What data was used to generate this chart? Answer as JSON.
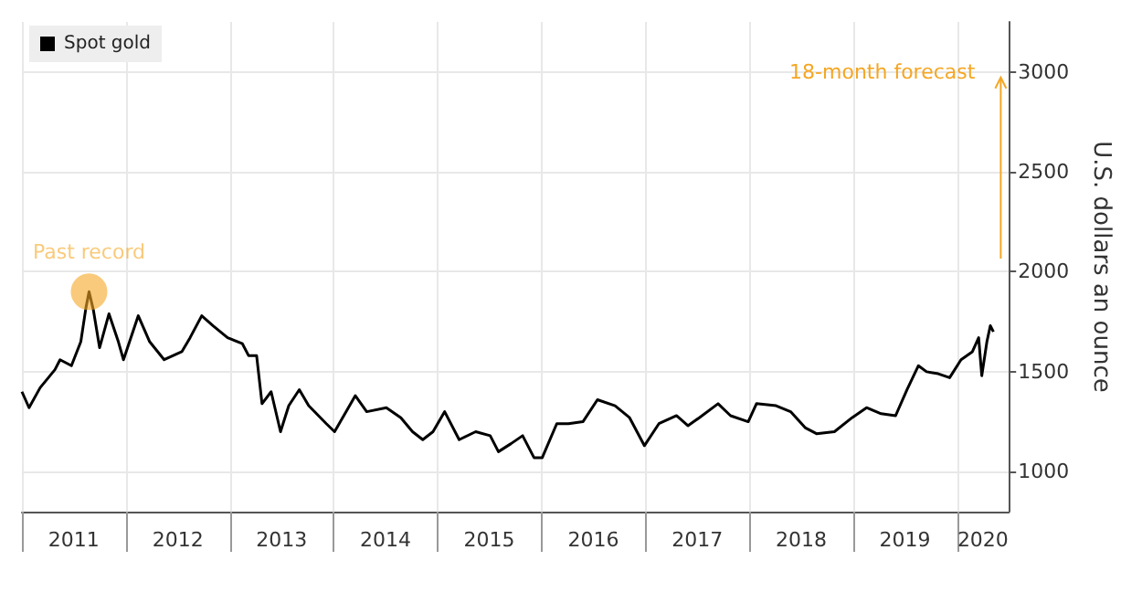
{
  "chart_data": {
    "type": "line",
    "ylabel": "U.S. dollars an ounce",
    "x": [
      "2011-01-01",
      "2011-01-26",
      "2011-03-06",
      "2011-04-27",
      "2011-05-15",
      "2011-06-24",
      "2011-07-27",
      "2011-08-14",
      "2011-08-25",
      "2011-09-09",
      "2011-10-01",
      "2011-11-03",
      "2011-12-06",
      "2011-12-24",
      "2012-02-14",
      "2012-03-25",
      "2012-05-15",
      "2012-07-16",
      "2012-08-14",
      "2012-09-24",
      "2012-11-03",
      "2012-12-24",
      "2013-02-14",
      "2013-03-08",
      "2013-04-05",
      "2013-04-24",
      "2013-05-26",
      "2013-06-28",
      "2013-07-27",
      "2013-09-02",
      "2013-10-05",
      "2013-12-06",
      "2014-01-04",
      "2014-03-18",
      "2014-04-27",
      "2014-07-05",
      "2014-08-25",
      "2014-10-05",
      "2014-11-10",
      "2014-12-16",
      "2015-01-26",
      "2015-03-18",
      "2015-05-15",
      "2015-07-05",
      "2015-08-03",
      "2015-09-16",
      "2015-10-27",
      "2015-12-06",
      "2016-01-04",
      "2016-02-24",
      "2016-04-05",
      "2016-05-26",
      "2016-07-16",
      "2016-09-16",
      "2016-11-06",
      "2016-12-28",
      "2017-02-17",
      "2017-04-20",
      "2017-05-30",
      "2017-07-09",
      "2017-09-13",
      "2017-10-27",
      "2017-12-28",
      "2018-01-26",
      "2018-04-05",
      "2018-05-26",
      "2018-07-16",
      "2018-08-25",
      "2018-10-27",
      "2018-12-28",
      "2019-02-17",
      "2019-04-09",
      "2019-05-30",
      "2019-07-09",
      "2019-08-18",
      "2019-09-16",
      "2019-10-27",
      "2019-12-06",
      "2020-01-15",
      "2020-02-24",
      "2020-03-17",
      "2020-03-28",
      "2020-04-15",
      "2020-04-27",
      "2020-05-08"
    ],
    "series": [
      {
        "name": "Spot gold",
        "color": "#000000",
        "values": [
          1400,
          1320,
          1420,
          1510,
          1560,
          1530,
          1650,
          1820,
          1900,
          1810,
          1620,
          1790,
          1650,
          1560,
          1780,
          1650,
          1560,
          1600,
          1670,
          1780,
          1730,
          1670,
          1640,
          1580,
          1580,
          1340,
          1400,
          1200,
          1330,
          1410,
          1330,
          1240,
          1200,
          1380,
          1300,
          1320,
          1270,
          1200,
          1160,
          1200,
          1300,
          1160,
          1200,
          1180,
          1100,
          1140,
          1180,
          1070,
          1070,
          1240,
          1240,
          1250,
          1360,
          1330,
          1270,
          1130,
          1240,
          1280,
          1230,
          1270,
          1340,
          1280,
          1250,
          1340,
          1330,
          1300,
          1220,
          1190,
          1200,
          1270,
          1320,
          1290,
          1280,
          1410,
          1530,
          1500,
          1490,
          1470,
          1560,
          1600,
          1670,
          1480,
          1650,
          1730,
          1700
        ]
      }
    ],
    "xlim": [
      "2011-01-01",
      "2020-07-01"
    ],
    "xticks": [
      {
        "value": "2011-01-01",
        "label": null
      },
      {
        "value": "2011-07-02",
        "label": "2011"
      },
      {
        "value": "2012-01-01",
        "label": null
      },
      {
        "value": "2012-07-02",
        "label": "2012"
      },
      {
        "value": "2013-01-01",
        "label": null
      },
      {
        "value": "2013-07-02",
        "label": "2013"
      },
      {
        "value": "2014-01-01",
        "label": null
      },
      {
        "value": "2014-07-02",
        "label": "2014"
      },
      {
        "value": "2015-01-01",
        "label": null
      },
      {
        "value": "2015-07-02",
        "label": "2015"
      },
      {
        "value": "2016-01-01",
        "label": null
      },
      {
        "value": "2016-07-02",
        "label": "2016"
      },
      {
        "value": "2017-01-01",
        "label": null
      },
      {
        "value": "2017-07-02",
        "label": "2017"
      },
      {
        "value": "2018-01-01",
        "label": null
      },
      {
        "value": "2018-07-02",
        "label": "2018"
      },
      {
        "value": "2019-01-01",
        "label": null
      },
      {
        "value": "2019-07-02",
        "label": "2019"
      },
      {
        "value": "2020-01-01",
        "label": null
      },
      {
        "value": "2020-04-01",
        "label": "2020"
      }
    ],
    "ylim": [
      800,
      3250
    ],
    "yticks": [
      1000,
      1500,
      2000,
      2500,
      3000
    ],
    "grid": true,
    "legend": "top left",
    "annotations": [
      {
        "text": "Past record",
        "x": "2011-08-25",
        "y": 1900
      },
      "18-month forecast"
    ]
  }
}
